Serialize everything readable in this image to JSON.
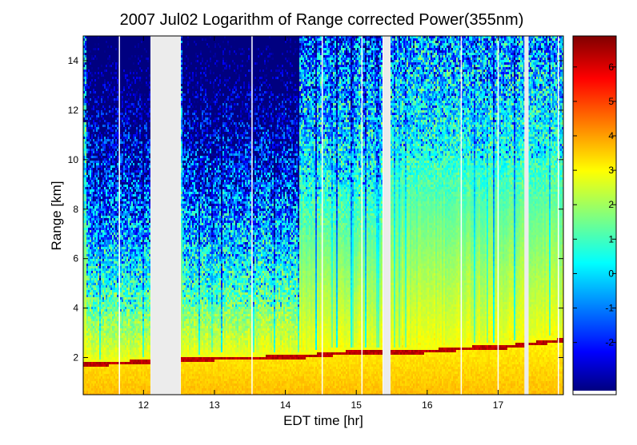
{
  "chart_data": {
    "type": "heatmap",
    "title": "2007 Jul02  Logarithm of Range corrected Power(355nm)",
    "xlabel": "EDT time [hr]",
    "ylabel": "Range [km]",
    "xlim": [
      11.15,
      17.92
    ],
    "ylim": [
      0.5,
      15
    ],
    "x_ticks": [
      "12",
      "13",
      "14",
      "15",
      "16",
      "17"
    ],
    "y_ticks": [
      "2",
      "4",
      "6",
      "8",
      "10",
      "12",
      "14"
    ],
    "colorbar": {
      "range": [
        -3.4,
        6.9
      ],
      "ticks": [
        "-2",
        "-1",
        "0",
        "1",
        "2",
        "3",
        "4",
        "5",
        "6"
      ],
      "colormap": "jet"
    },
    "missing_data_gaps_hr": [
      [
        12.1,
        12.52
      ],
      [
        15.38,
        15.48
      ],
      [
        17.37,
        17.43
      ]
    ],
    "instrument_dropouts_hr": [
      11.66,
      13.53,
      14.52,
      15.08,
      16.48,
      17.0,
      17.85
    ],
    "low_signal_periods": [
      {
        "x_range": [
          11.2,
          12.1
        ],
        "fade_height_km": 1.9
      },
      {
        "x_range": [
          12.55,
          14.2
        ],
        "fade_height_km": 2.1
      },
      {
        "x_range": [
          14.2,
          15.38
        ],
        "fade_height_km": 6.5
      },
      {
        "x_range": [
          15.48,
          17.92
        ],
        "fade_height_km": 8.0
      }
    ],
    "boundary_layer_top_km": [
      {
        "x": 11.3,
        "y": 1.65
      },
      {
        "x": 12.0,
        "y": 1.75
      },
      {
        "x": 12.6,
        "y": 1.85
      },
      {
        "x": 13.5,
        "y": 1.9
      },
      {
        "x": 14.2,
        "y": 1.95
      },
      {
        "x": 15.0,
        "y": 2.15
      },
      {
        "x": 15.3,
        "y": 2.15
      },
      {
        "x": 15.9,
        "y": 2.15
      },
      {
        "x": 16.6,
        "y": 2.3
      },
      {
        "x": 17.1,
        "y": 2.35
      },
      {
        "x": 17.85,
        "y": 2.6
      }
    ],
    "background": {
      "gap": "#ececec"
    }
  }
}
